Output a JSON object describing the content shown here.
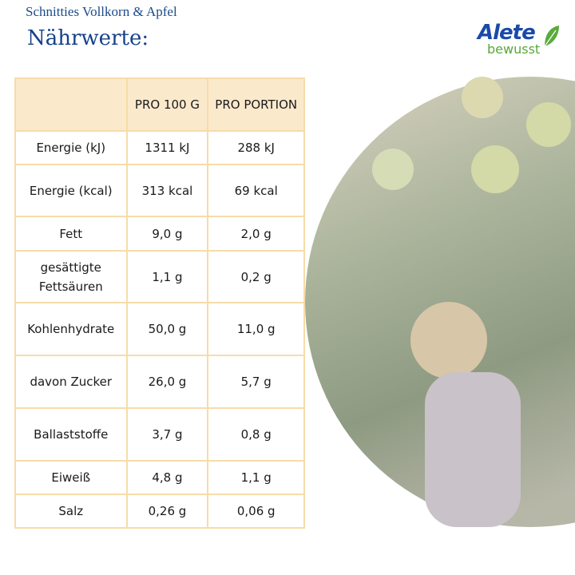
{
  "product": "Schnitties Vollkorn & Apfel",
  "title": "Nährwerte:",
  "logo": {
    "brand": "Alete",
    "sub": "bewusst"
  },
  "table": {
    "headers": [
      "",
      "PRO 100 G",
      "PRO PORTION"
    ],
    "rows": [
      {
        "label": "Energie (kJ)",
        "per100": "1311 kJ",
        "portion": "288 kJ"
      },
      {
        "label": "Energie (kcal)",
        "per100": "313 kcal",
        "portion": "69 kcal"
      },
      {
        "label": "Fett",
        "per100": "9,0 g",
        "portion": "2,0 g"
      },
      {
        "label": "gesättigte Fettsäuren",
        "per100": "1,1 g",
        "portion": "0,2 g"
      },
      {
        "label": "Kohlenhydrate",
        "per100": "50,0 g",
        "portion": "11,0 g"
      },
      {
        "label": "davon Zucker",
        "per100": "26,0 g",
        "portion": "5,7 g"
      },
      {
        "label": "Ballaststoffe",
        "per100": "3,7 g",
        "portion": "0,8 g"
      },
      {
        "label": "Eiweiß",
        "per100": "4,8 g",
        "portion": "1,1 g"
      },
      {
        "label": "Salz",
        "per100": "0,26 g",
        "portion": "0,06 g"
      }
    ]
  }
}
